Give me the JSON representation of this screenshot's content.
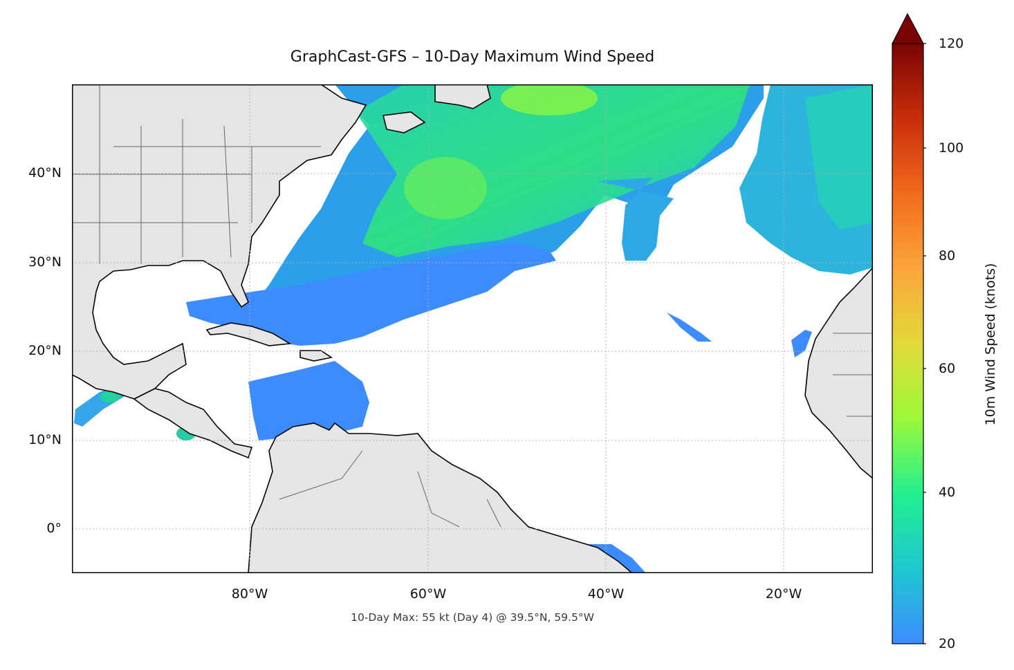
{
  "title": "GraphCast-GFS – 10-Day Maximum Wind Speed",
  "footer": "10-Day Max: 55 kt (Day 4) @ 39.5°N, 59.5°W",
  "lat_labels": [
    "40°N",
    "30°N",
    "20°N",
    "10°N",
    "0°"
  ],
  "lon_labels": [
    "80°W",
    "60°W",
    "40°W",
    "20°W"
  ],
  "colorbar": {
    "label": "10m Wind Speed (knots)",
    "ticks": [
      "20",
      "40",
      "60",
      "80",
      "100",
      "120"
    ],
    "range": [
      20,
      120
    ],
    "extend": "max",
    "colors": [
      "#3d8cff",
      "#1ec8d0",
      "#22ef8e",
      "#9cf93a",
      "#e2d93a",
      "#fba53a",
      "#f16a1c",
      "#c92e0b",
      "#7a0403"
    ]
  },
  "chart_data": {
    "type": "heatmap",
    "title": "GraphCast-GFS – 10-Day Maximum Wind Speed",
    "xlabel": "",
    "ylabel": "",
    "xlim": [
      -100,
      -10
    ],
    "ylim": [
      -5,
      50
    ],
    "x_ticks": [
      -80,
      -60,
      -40,
      -20
    ],
    "y_ticks": [
      0,
      10,
      20,
      30,
      40
    ],
    "gridlines": true,
    "colorbar_label": "10m Wind Speed (knots)",
    "value_range": [
      20,
      120
    ],
    "max": {
      "value": 55,
      "unit": "kt",
      "day": 4,
      "lat": 39.5,
      "lon": -59.5
    }
  }
}
